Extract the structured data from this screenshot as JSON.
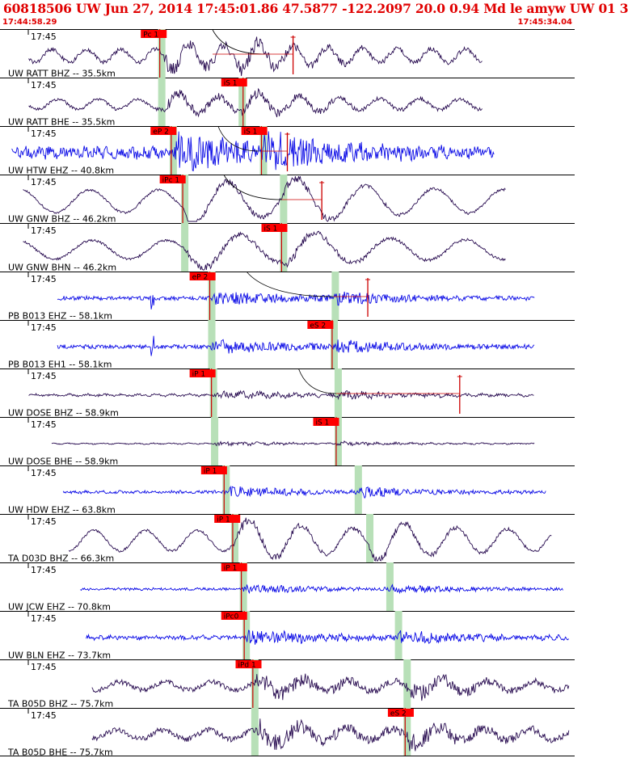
{
  "header": {
    "title": "60818506 UW Jun 27, 2014 17:45:01.86   47.5877 -122.2097 20.0 0.94 Md le amyw UW 01   3",
    "time_start": "17:44:58.29",
    "time_end": "17:45:34.04"
  },
  "colors": {
    "header": "#e00000",
    "trace_dark": "#2a0e52",
    "trace_blue": "#0a0ae6",
    "pick_box": "#ff0000",
    "pick_line": "#cc0000",
    "window": "#b8e0b8",
    "coda": "#cc0000"
  },
  "chart_data": {
    "type": "seismogram",
    "event_id": "60818506",
    "time_range": [
      "17:44:58.29",
      "17:45:34.04"
    ],
    "tick_label": "17:45",
    "panels": [
      {
        "label": "UW RATT BHZ -- 35.5km",
        "color": "dark",
        "start": 0.05,
        "end": 0.84,
        "amp": 0.45,
        "period": 0.06,
        "hf": 0.25,
        "event": 0.28,
        "s_event": 0.41,
        "pick": {
          "text": "Pc 1",
          "t": 0.278,
          "box": 0.245
        },
        "window": 0.278,
        "coda": [
          0.37,
          0.51
        ],
        "curve": [
          0.37,
          0.46
        ]
      },
      {
        "label": "UW RATT BHE -- 35.5km",
        "color": "dark",
        "start": 0.05,
        "end": 0.84,
        "amp": 0.35,
        "period": 0.07,
        "hf": 0.25,
        "event": 0.28,
        "s_event": 0.42,
        "pick": {
          "text": "iS 1",
          "t": 0.423,
          "box": 0.385
        },
        "window": 0.278,
        "window2": 0.418
      },
      {
        "label": "UW HTW EHZ -- 40.8km",
        "color": "blue",
        "start": 0.02,
        "end": 0.86,
        "amp": 0.4,
        "period": 0.02,
        "hf": 0.75,
        "event": 0.3,
        "s_event": 0.45,
        "pick": {
          "text": "eP 2",
          "t": 0.298,
          "box": 0.262
        },
        "pick2": {
          "text": "iS 1",
          "t": 0.455,
          "box": 0.42
        },
        "window": 0.298,
        "window2": 0.455,
        "coda": [
          0.455,
          0.5
        ],
        "curve": [
          0.38,
          0.45
        ]
      },
      {
        "label": "UW GNW BHZ -- 46.2km",
        "color": "dark",
        "start": 0.04,
        "end": 0.88,
        "amp": 0.65,
        "period": 0.12,
        "hf": 0.1,
        "event": 0.32,
        "s_event": 0.49,
        "pick": {
          "text": "iPc 1",
          "t": 0.318,
          "box": 0.278
        },
        "window": 0.318,
        "window2": 0.49,
        "coda": [
          0.49,
          0.56
        ],
        "curve": [
          0.39,
          0.49
        ]
      },
      {
        "label": "UW GNW BHN -- 46.2km",
        "color": "dark",
        "start": 0.04,
        "end": 0.88,
        "amp": 0.55,
        "period": 0.13,
        "hf": 0.12,
        "event": 0.32,
        "s_event": 0.49,
        "pick": {
          "text": "iS 1",
          "t": 0.49,
          "box": 0.455
        },
        "window": 0.318,
        "window2": 0.49
      },
      {
        "label": "PB B013 EHZ -- 58.1km",
        "color": "blue",
        "start": 0.1,
        "end": 0.93,
        "amp": 0.12,
        "period": 0.01,
        "hf": 0.95,
        "event": 0.365,
        "s_event": 0.58,
        "spike": 0.265,
        "pick": {
          "text": "eP 2",
          "t": 0.365,
          "box": 0.33
        },
        "window": 0.365,
        "window2": 0.58,
        "coda": [
          0.58,
          0.64
        ],
        "curve": [
          0.43,
          0.58
        ]
      },
      {
        "label": "PB B013 EH1 -- 58.1km",
        "color": "blue",
        "start": 0.1,
        "end": 0.93,
        "amp": 0.12,
        "period": 0.01,
        "hf": 0.95,
        "event": 0.365,
        "s_event": 0.58,
        "spike": 0.265,
        "pick": {
          "text": "eS 2",
          "t": 0.578,
          "box": 0.535
        },
        "window": 0.365,
        "window2": 0.578
      },
      {
        "label": "UW DOSE BHZ -- 58.9km",
        "color": "dark",
        "start": 0.05,
        "end": 0.93,
        "amp": 0.1,
        "period": 0.03,
        "hf": 0.6,
        "event": 0.37,
        "s_event": 0.585,
        "pick": {
          "text": "iP 1",
          "t": 0.368,
          "box": 0.33
        },
        "window": 0.368,
        "window2": 0.585,
        "coda": [
          0.585,
          0.8
        ],
        "curve": [
          0.52,
          0.585
        ]
      },
      {
        "label": "UW DOSE BHE -- 58.9km",
        "color": "dark",
        "start": 0.09,
        "end": 0.93,
        "amp": 0.05,
        "period": 0.03,
        "hf": 0.6,
        "event": 0.37,
        "s_event": 0.585,
        "pick": {
          "text": "iS 1",
          "t": 0.585,
          "box": 0.545
        },
        "window": 0.37,
        "window2": 0.585
      },
      {
        "label": "UW HDW EHZ -- 63.8km",
        "color": "blue",
        "start": 0.11,
        "end": 0.95,
        "amp": 0.1,
        "period": 0.015,
        "hf": 0.8,
        "event": 0.39,
        "s_event": 0.62,
        "pick": {
          "text": "iP 1",
          "t": 0.39,
          "box": 0.35
        },
        "window": 0.39,
        "window2": 0.62
      },
      {
        "label": "TA D03D BHZ -- 66.3km",
        "color": "dark",
        "start": 0.12,
        "end": 0.96,
        "amp": 0.6,
        "period": 0.09,
        "hf": 0.12,
        "event": 0.405,
        "s_event": 0.64,
        "pick": {
          "text": "iP 1",
          "t": 0.405,
          "box": 0.373
        },
        "window": 0.405,
        "window2": 0.64
      },
      {
        "label": "UW JCW EHZ -- 70.8km",
        "color": "blue",
        "start": 0.14,
        "end": 0.98,
        "amp": 0.08,
        "period": 0.015,
        "hf": 0.85,
        "event": 0.42,
        "s_event": 0.675,
        "pick": {
          "text": "iP 1",
          "t": 0.42,
          "box": 0.385
        },
        "window": 0.42,
        "window2": 0.675
      },
      {
        "label": "UW BLN EHZ -- 73.7km",
        "color": "blue",
        "start": 0.15,
        "end": 0.99,
        "amp": 0.15,
        "period": 0.02,
        "hf": 0.75,
        "event": 0.425,
        "s_event": 0.69,
        "pick": {
          "text": "iPc0",
          "t": 0.425,
          "box": 0.385
        },
        "window": 0.425,
        "window2": 0.69
      },
      {
        "label": "TA B05D BHZ -- 75.7km",
        "color": "dark",
        "start": 0.16,
        "end": 0.99,
        "amp": 0.35,
        "period": 0.08,
        "hf": 0.4,
        "event": 0.44,
        "s_event": 0.705,
        "pick": {
          "text": "iPd 1",
          "t": 0.44,
          "box": 0.41
        },
        "window": 0.44,
        "window2": 0.705
      },
      {
        "label": "TA B05D BHE -- 75.7km",
        "color": "dark",
        "start": 0.16,
        "end": 0.99,
        "amp": 0.4,
        "period": 0.08,
        "hf": 0.4,
        "event": 0.44,
        "s_event": 0.705,
        "pick": {
          "text": "eS 2",
          "t": 0.705,
          "box": 0.675
        },
        "window": 0.44,
        "window2": 0.705
      }
    ]
  }
}
